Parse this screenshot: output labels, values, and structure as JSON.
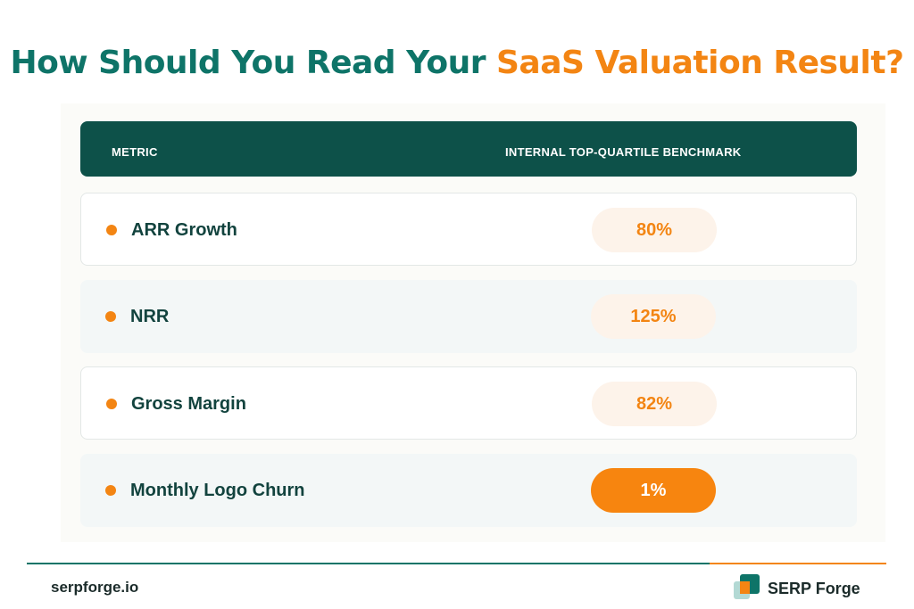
{
  "title": {
    "part1": "How Should You Read Your ",
    "part2": "SaaS Valuation Result?"
  },
  "colors": {
    "teal": "#0e7468",
    "dark_teal": "#0d5149",
    "orange": "#f38513"
  },
  "chart_data": {
    "type": "table",
    "columns": [
      "METRIC",
      "INTERNAL TOP-QUARTILE BENCHMARK"
    ],
    "rows": [
      {
        "metric": "ARR Growth",
        "benchmark": "80%",
        "highlight": false
      },
      {
        "metric": "NRR",
        "benchmark": "125%",
        "highlight": false
      },
      {
        "metric": "Gross Margin",
        "benchmark": "82%",
        "highlight": false
      },
      {
        "metric": "Monthly Logo Churn",
        "benchmark": "1%",
        "highlight": true
      }
    ]
  },
  "footer": {
    "site": "serpforge.io",
    "brand": "SERP Forge"
  }
}
